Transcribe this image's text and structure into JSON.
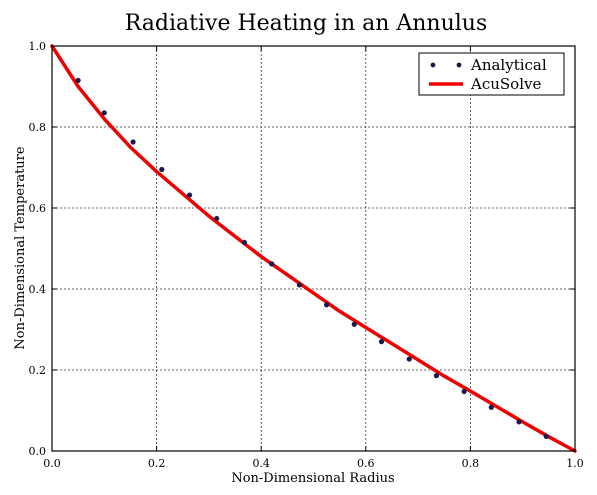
{
  "chart_data": {
    "type": "line",
    "title": "Radiative Heating in an Annulus",
    "xlabel": "Non-Dimensional Radius",
    "ylabel": "Non-Dimensional Temperature",
    "xlim": [
      0.0,
      1.0
    ],
    "ylim": [
      0.0,
      1.0
    ],
    "xticks": [
      "0.0",
      "0.2",
      "0.4",
      "0.6",
      "0.8",
      "1.0"
    ],
    "yticks": [
      "0.0",
      "0.2",
      "0.4",
      "0.6",
      "0.8",
      "1.0"
    ],
    "grid": true,
    "legend_position": "top-right",
    "series": [
      {
        "name": "Analytical",
        "kind": "scatter",
        "color": "#1a1a4e",
        "x": [
          0.05,
          0.1,
          0.155,
          0.21,
          0.263,
          0.315,
          0.368,
          0.42,
          0.473,
          0.525,
          0.578,
          0.63,
          0.683,
          0.735,
          0.788,
          0.84,
          0.893,
          0.945
        ],
        "y": [
          0.915,
          0.835,
          0.763,
          0.695,
          0.632,
          0.574,
          0.515,
          0.462,
          0.41,
          0.361,
          0.313,
          0.27,
          0.227,
          0.186,
          0.147,
          0.108,
          0.072,
          0.036
        ]
      },
      {
        "name": "AcuSolve",
        "kind": "line",
        "color": "#ee0000",
        "x": [
          0.0,
          0.05,
          0.1,
          0.15,
          0.2,
          0.25,
          0.3,
          0.35,
          0.4,
          0.45,
          0.5,
          0.55,
          0.6,
          0.65,
          0.7,
          0.75,
          0.8,
          0.85,
          0.9,
          0.95,
          1.0
        ],
        "y": [
          1.0,
          0.9,
          0.82,
          0.75,
          0.69,
          0.635,
          0.58,
          0.53,
          0.48,
          0.435,
          0.39,
          0.345,
          0.305,
          0.265,
          0.225,
          0.185,
          0.148,
          0.11,
          0.072,
          0.035,
          0.0
        ]
      }
    ]
  }
}
